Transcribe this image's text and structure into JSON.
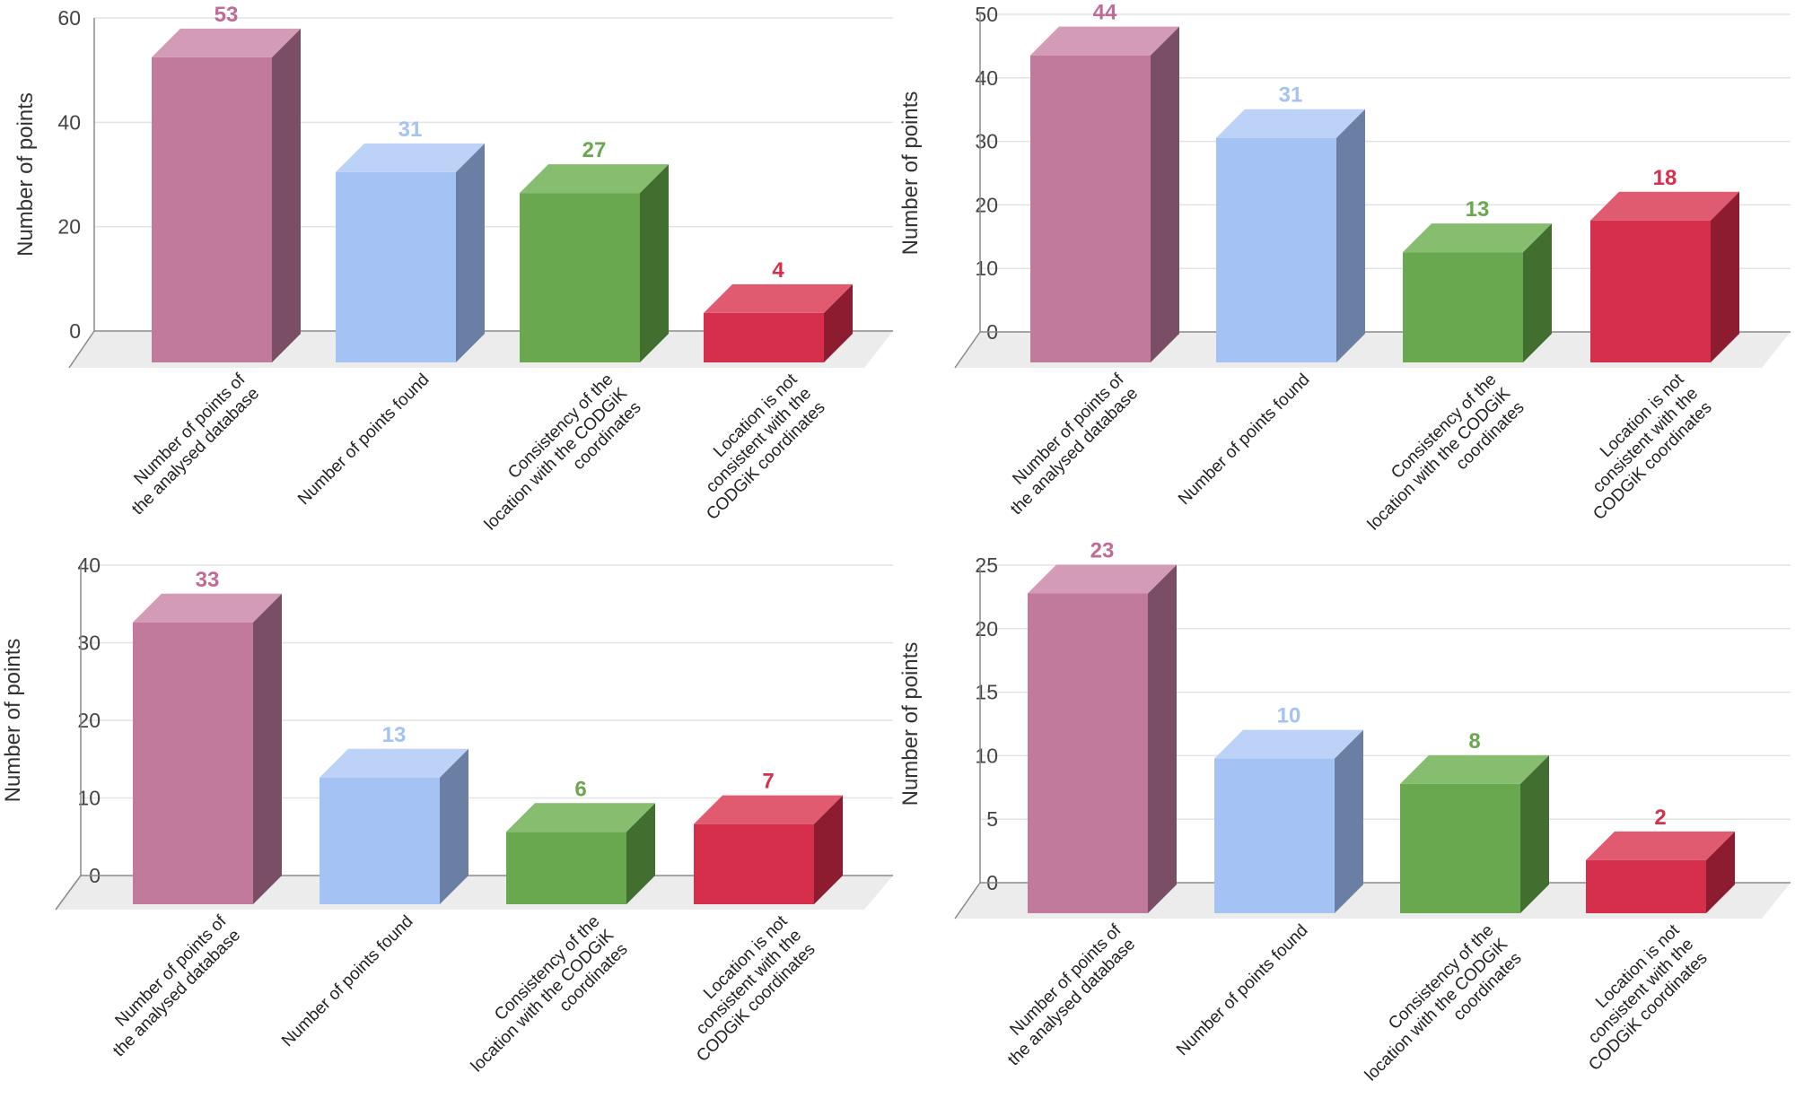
{
  "chart_data": [
    {
      "type": "bar",
      "position": "top-left",
      "categories": [
        [
          "Number of points of",
          "the analysed database"
        ],
        [
          "Number of points found"
        ],
        [
          "Consistency of the",
          "location with the CODGiK",
          "coordinates"
        ],
        [
          "Location is not",
          "consistent with the",
          "CODGiK coordinates"
        ]
      ],
      "values": [
        53,
        31,
        27,
        4
      ],
      "ylabel": "Number of points",
      "yticks": [
        0,
        20,
        40,
        60
      ],
      "ylim": [
        0,
        60
      ]
    },
    {
      "type": "bar",
      "position": "top-right",
      "categories": [
        [
          "Number of points of",
          "the analysed database"
        ],
        [
          "Number of points found"
        ],
        [
          "Consistency of the",
          "location with the CODGiK",
          "coordinates"
        ],
        [
          "Location is not",
          "consistent with the",
          "CODGiK coordinates"
        ]
      ],
      "values": [
        44,
        31,
        13,
        18
      ],
      "ylabel": "Number of points",
      "yticks": [
        0,
        10,
        20,
        30,
        40,
        50
      ],
      "ylim": [
        0,
        50
      ]
    },
    {
      "type": "bar",
      "position": "bottom-left",
      "categories": [
        [
          "Number of points of",
          "the analysed database"
        ],
        [
          "Number of points found"
        ],
        [
          "Consistency of the",
          "location with the CODGiK",
          "coordinates"
        ],
        [
          "Location is not",
          "consistent with the",
          "CODGiK coordinates"
        ]
      ],
      "values": [
        33,
        13,
        6,
        7
      ],
      "ylabel": "Number of points",
      "yticks": [
        0,
        10,
        20,
        30,
        40
      ],
      "ylim": [
        0,
        40
      ]
    },
    {
      "type": "bar",
      "position": "bottom-right",
      "categories": [
        [
          "Number of points of",
          "the analysed database"
        ],
        [
          "Number of points found"
        ],
        [
          "Consistency of the",
          "location with the CODGiK",
          "coordinates"
        ],
        [
          "Location is not",
          "consistent with the",
          "CODGiK coordinates"
        ]
      ],
      "values": [
        23,
        10,
        8,
        2
      ],
      "ylabel": "Number of points",
      "yticks": [
        0,
        5,
        10,
        15,
        20,
        25
      ],
      "ylim": [
        0,
        25
      ]
    }
  ],
  "colors": {
    "series": [
      {
        "front": "#c17a9c",
        "top": "#d49bb7",
        "side": "#7a4f66",
        "label": "#c06a95"
      },
      {
        "front": "#a4c2f4",
        "top": "#bcd3f7",
        "side": "#6a7fa3",
        "label": "#a4c2f4"
      },
      {
        "front": "#6aa84f",
        "top": "#86bd6f",
        "side": "#426f30",
        "label": "#6aa84f"
      },
      {
        "front": "#d62f4c",
        "top": "#e05a70",
        "side": "#8e1c30",
        "label": "#d62f4c"
      }
    ],
    "floor": "#ececec",
    "grid": "#e3e3e3",
    "axis": "#8a8a8a"
  }
}
